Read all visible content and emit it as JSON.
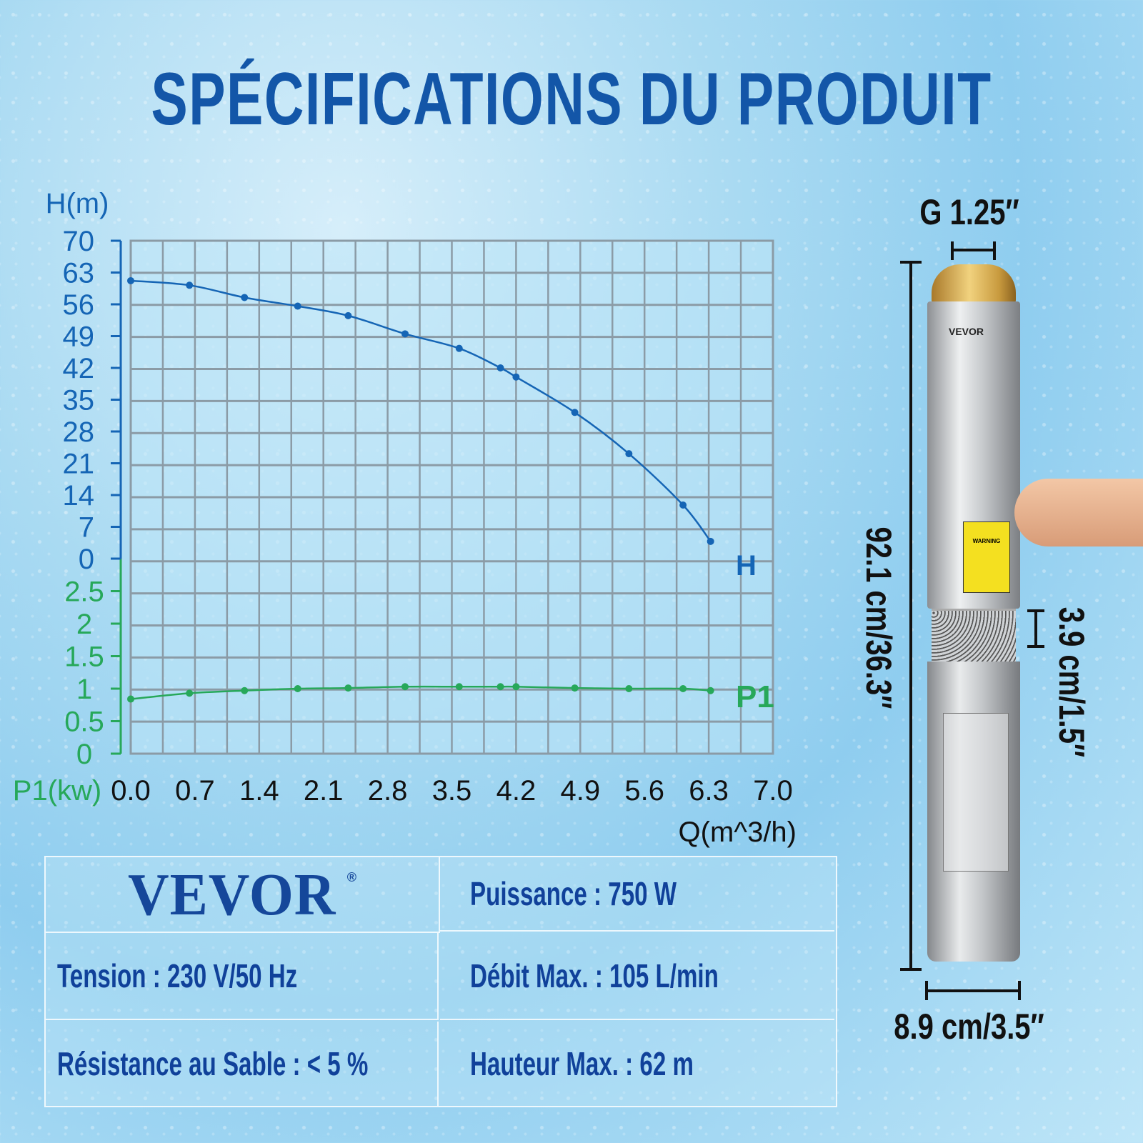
{
  "title": "SPÉCIFICATIONS DU PRODUIT",
  "chart_data": {
    "type": "line",
    "xlabel": "Q(m^3/h)",
    "ylabel_h": "H(m)",
    "ylabel_p1": "P1(kw)",
    "x_ticks": [
      "0.0",
      "0.7",
      "1.4",
      "2.1",
      "2.8",
      "3.5",
      "4.2",
      "4.9",
      "5.6",
      "6.3",
      "7.0"
    ],
    "h_ticks": [
      "70",
      "63",
      "56",
      "49",
      "42",
      "35",
      "28",
      "21",
      "14",
      "7",
      "0"
    ],
    "p1_ticks": [
      "2.5",
      "2",
      "1.5",
      "1",
      "0.5",
      "0"
    ],
    "xlim": [
      0,
      7.0
    ],
    "h_ylim": [
      0,
      70
    ],
    "p1_ylim": [
      0,
      3
    ],
    "grid": true,
    "series": [
      {
        "name": "H",
        "color": "#1565b5",
        "x": [
          0.0,
          0.64,
          1.24,
          1.82,
          2.37,
          2.99,
          3.58,
          4.03,
          4.2,
          4.84,
          5.43,
          6.02,
          6.32
        ],
        "y": [
          61.2,
          60.2,
          57.5,
          55.6,
          53.5,
          49.5,
          46.3,
          42.0,
          40.0,
          32.2,
          23.1,
          11.8,
          3.8
        ]
      },
      {
        "name": "P1",
        "color": "#27a85a",
        "x": [
          0.0,
          0.64,
          1.24,
          1.82,
          2.37,
          2.99,
          3.58,
          4.03,
          4.2,
          4.84,
          5.43,
          6.02,
          6.32
        ],
        "y": [
          0.84,
          0.93,
          0.97,
          1.0,
          1.01,
          1.03,
          1.03,
          1.03,
          1.03,
          1.01,
          1.0,
          1.0,
          0.97
        ]
      }
    ]
  },
  "specs": {
    "brand": "VEVOR",
    "registered": "®",
    "power": "Puissance : 750 W",
    "voltage": "Tension : 230 V/50 Hz",
    "flow": "Débit Max. : 105 L/min",
    "sand": "Résistance au Sable : < 5 %",
    "head": "Hauteur Max. : 62 m"
  },
  "dimensions": {
    "outlet": "G 1.25″",
    "length": "92.1 cm/36.3″",
    "inlet": "3.9 cm/1.5″",
    "diameter": "8.9 cm/3.5″"
  },
  "pump_label": {
    "brand": "VEVOR",
    "warning": "WARNING"
  }
}
